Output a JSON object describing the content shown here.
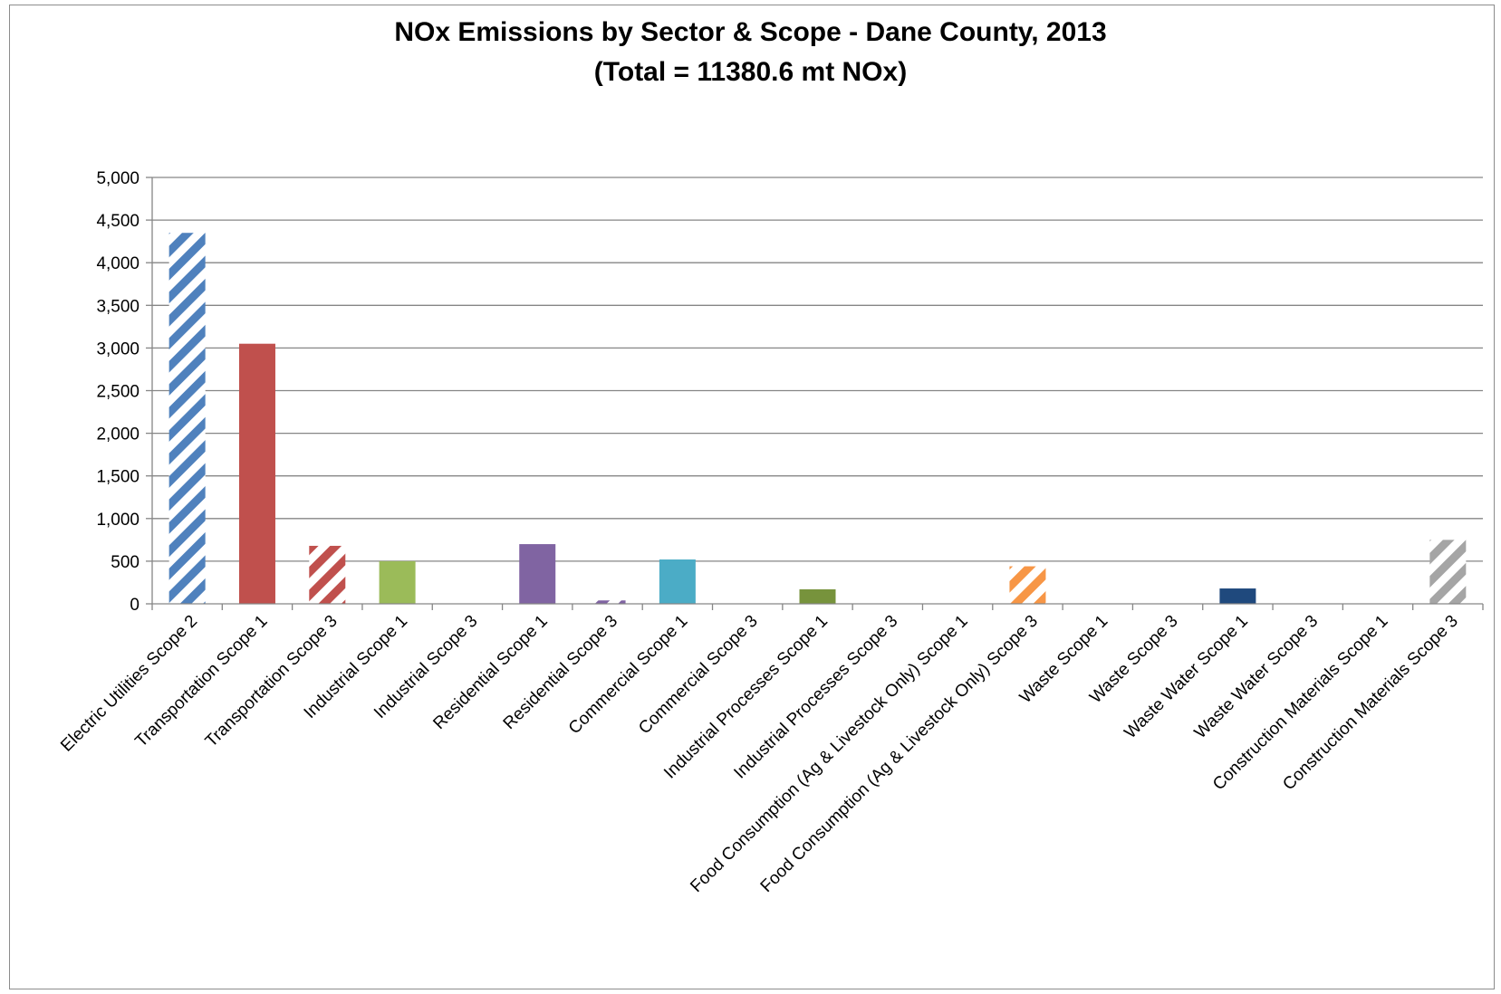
{
  "chart_data": {
    "type": "bar",
    "title_line1": "NOx Emissions by Sector & Scope - Dane County, 2013",
    "title_line2": "(Total = 11380.6 mt NOx)",
    "ylim": [
      0,
      5000
    ],
    "yticks": [
      "5,000",
      "4,500",
      "4,000",
      "3,500",
      "3,000",
      "2,500",
      "2,000",
      "1,500",
      "1,000",
      "500",
      "0"
    ],
    "ytick_values": [
      5000,
      4500,
      4000,
      3500,
      3000,
      2500,
      2000,
      1500,
      1000,
      500,
      0
    ],
    "grid": "horizontal",
    "legend": "none",
    "categories": [
      "Electric Utilities Scope 2",
      "Transportation Scope 1",
      "Transportation Scope 3",
      "Industrial Scope 1",
      "Industrial Scope 3",
      "Residential Scope 1",
      "Residential Scope 3",
      "Commercial Scope 1",
      "Commercial Scope 3",
      "Industrial Processes Scope 1",
      "Industrial Processes Scope 3",
      "Food Consumption (Ag & Livestock Only) Scope 1",
      "Food Consumption (Ag & Livestock Only) Scope 3",
      "Waste Scope 1",
      "Waste Scope 3",
      "Waste Water Scope 1",
      "Waste Water Scope 3",
      "Construction Materials Scope 1",
      "Construction Materials Scope 3"
    ],
    "values": [
      4350,
      3050,
      680,
      500,
      0,
      700,
      40,
      520,
      0,
      170,
      0,
      0,
      440,
      0,
      0,
      180,
      0,
      0,
      750
    ],
    "colors": [
      "#4F81BD",
      "#C0504D",
      "#C0504D",
      "#9BBB59",
      "#9BBB59",
      "#8064A2",
      "#8064A2",
      "#4BACC6",
      "#4BACC6",
      "#77933C",
      "#77933C",
      "#F79646",
      "#F79646",
      "#1F497D",
      "#1F497D",
      "#1F497D",
      "#1F497D",
      "#A5A5A5",
      "#A5A5A5"
    ],
    "hatched": [
      true,
      false,
      true,
      false,
      true,
      false,
      true,
      false,
      true,
      false,
      true,
      false,
      true,
      false,
      true,
      false,
      true,
      false,
      true
    ]
  }
}
